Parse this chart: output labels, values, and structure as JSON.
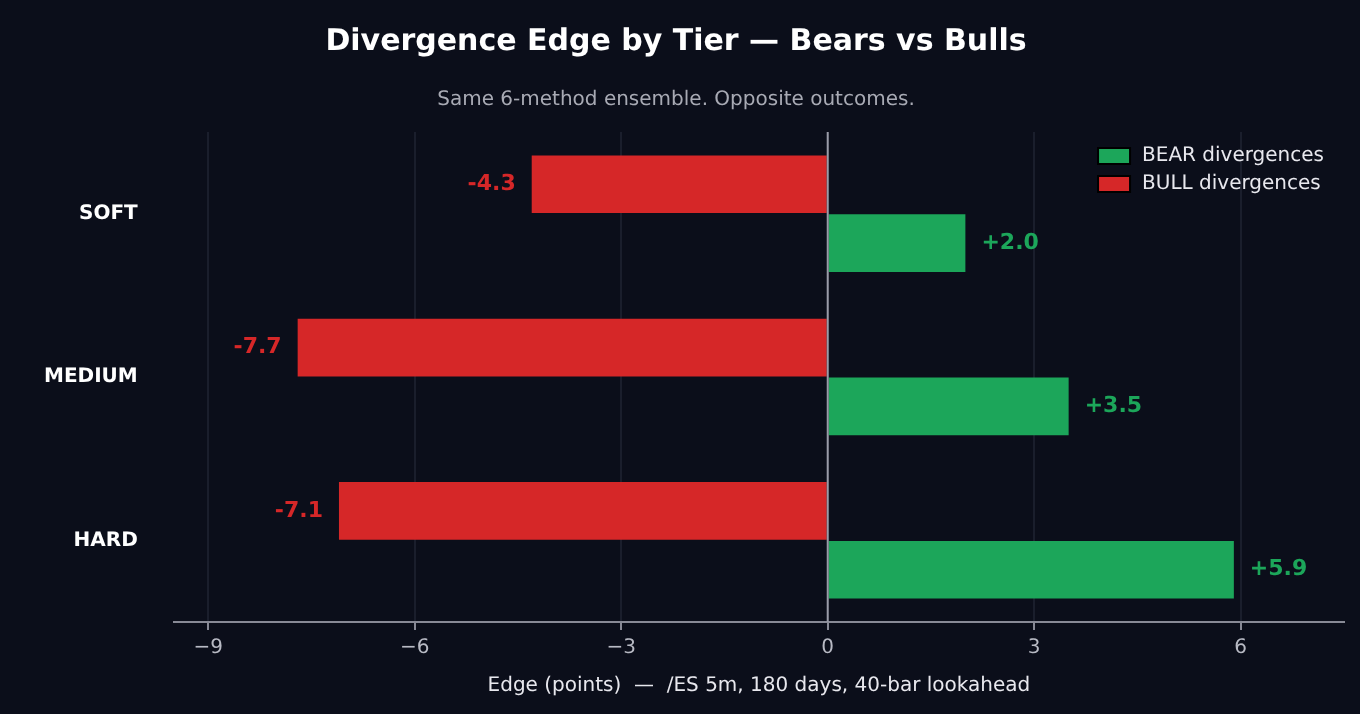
{
  "chart_data": {
    "type": "bar",
    "orientation": "horizontal",
    "title": "Divergence Edge by Tier — Bears vs Bulls",
    "subtitle": "Same 6-method ensemble. Opposite outcomes.",
    "xlabel": "Edge (points)  —  /ES 5m, 180 days, 40-bar lookahead",
    "categories": [
      "SOFT",
      "MEDIUM",
      "HARD"
    ],
    "series": [
      {
        "name": "BULL divergences",
        "color": "#d62728",
        "values": [
          -4.3,
          -7.7,
          -7.1
        ],
        "value_labels": [
          "-4.3",
          "-7.7",
          "-7.1"
        ]
      },
      {
        "name": "BEAR divergences",
        "color": "#1ca65a",
        "values": [
          2.0,
          3.5,
          5.9
        ],
        "value_labels": [
          "+2.0",
          "+3.5",
          "+5.9"
        ]
      }
    ],
    "xlim": [
      -9.5,
      7.5
    ],
    "xticks": [
      {
        "value": -9,
        "label": "−9"
      },
      {
        "value": -6,
        "label": "−6"
      },
      {
        "value": -3,
        "label": "−3"
      },
      0,
      3,
      6
    ],
    "ref_lines": [
      {
        "axis": "x",
        "value": 0,
        "color": "#9a9ca8"
      }
    ],
    "grid": "x",
    "legend": "top right"
  }
}
